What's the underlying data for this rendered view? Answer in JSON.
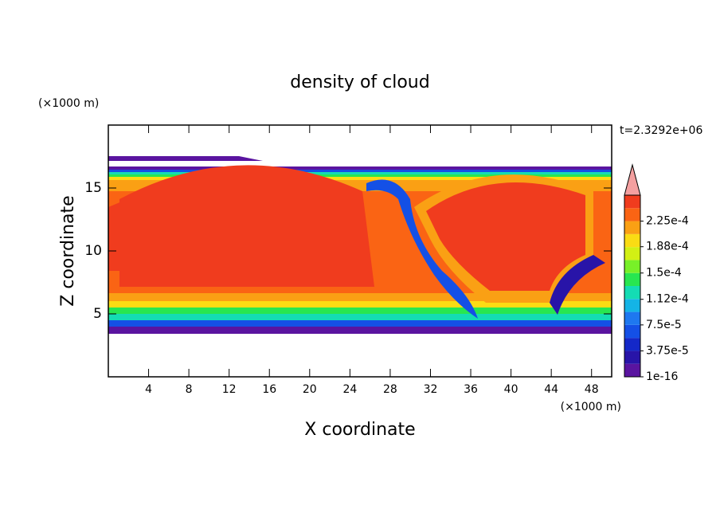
{
  "chart_data": {
    "type": "contour",
    "title": "density of cloud",
    "x_label": "X coordinate",
    "y_label": "Z coordinate",
    "x_unit": "(×1000 m)",
    "y_unit": "(×1000 m)",
    "time_label": "t=2.3292e+06",
    "xlim": [
      0,
      50
    ],
    "xticks": [
      4,
      8,
      12,
      16,
      20,
      24,
      28,
      32,
      36,
      40,
      44,
      48
    ],
    "ylim": [
      0,
      20
    ],
    "yticks": [
      5,
      10,
      15
    ],
    "colorbar": {
      "clim": [
        1e-16,
        0.0002625
      ],
      "ticks": [
        {
          "value": 1e-16,
          "label": "1e-16"
        },
        {
          "value": 3.75e-05,
          "label": "3.75e-5"
        },
        {
          "value": 7.5e-05,
          "label": "7.5e-5"
        },
        {
          "value": 0.000112,
          "label": "1.12e-4"
        },
        {
          "value": 0.00015,
          "label": "1.5e-4"
        },
        {
          "value": 0.000188,
          "label": "1.88e-4"
        },
        {
          "value": 0.000225,
          "label": "2.25e-4"
        }
      ],
      "colors": [
        "#5a14a0",
        "#2814a8",
        "#1428c8",
        "#1450e6",
        "#1e78f0",
        "#14b4e6",
        "#14dcb4",
        "#28e650",
        "#78f028",
        "#d2f014",
        "#fadc14",
        "#faa014",
        "#fa6414",
        "#f03c1e"
      ],
      "extend_color": "#f4a0a0"
    }
  }
}
